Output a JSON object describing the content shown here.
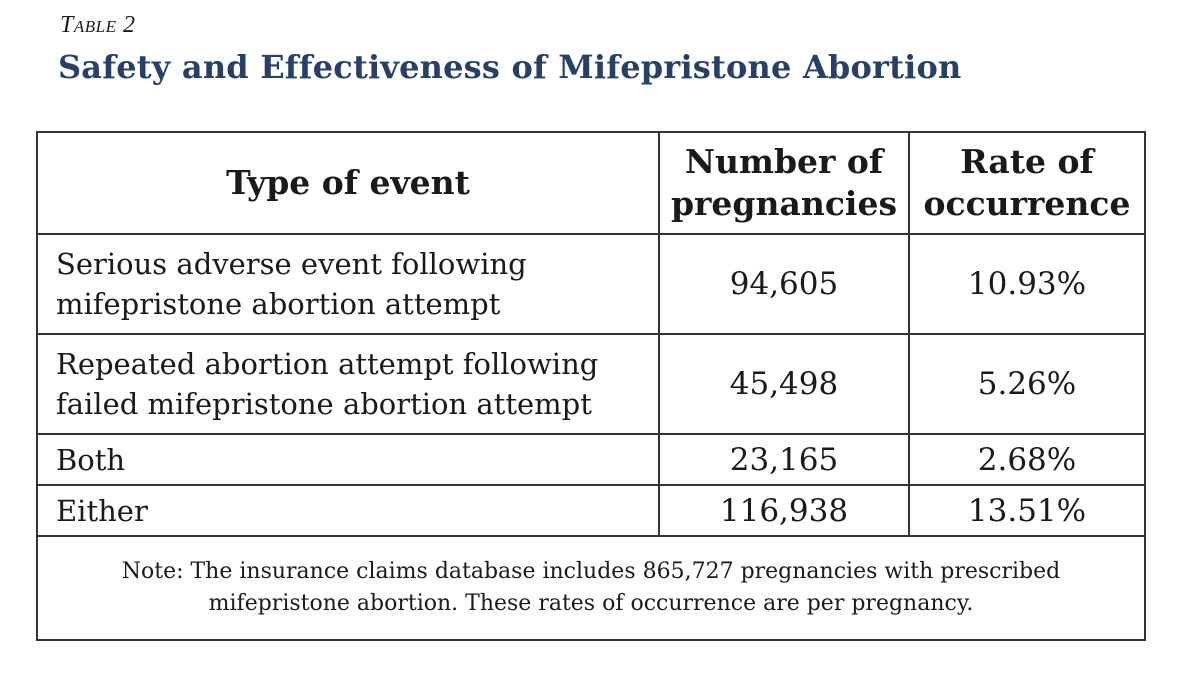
{
  "label": "Table 2",
  "title": "Safety and Effectiveness of Mifepristone Abortion",
  "table": {
    "headers": {
      "type": "Type of event",
      "number_line1": "Number of",
      "number_line2": "pregnancies",
      "rate_line1": "Rate of",
      "rate_line2": "occurrence"
    },
    "rows": [
      {
        "type_line1": "Serious adverse event following",
        "type_line2": "mifepristone abortion attempt",
        "number": "94,605",
        "rate": "10.93%"
      },
      {
        "type_line1": "Repeated abortion attempt following",
        "type_line2": "failed mifepristone abortion attempt",
        "number": "45,498",
        "rate": "5.26%"
      },
      {
        "type_line1": "Both",
        "type_line2": "",
        "number": "23,165",
        "rate": "2.68%"
      },
      {
        "type_line1": "Either",
        "type_line2": "",
        "number": "116,938",
        "rate": "13.51%"
      }
    ],
    "note_line1": "Note: The insurance claims database includes 865,727 pregnancies with prescribed",
    "note_line2": "mifepristone abortion. These rates of occurrence are per pregnancy."
  },
  "colors": {
    "title": "#27406a",
    "border": "#333333",
    "text": "#1a1a1a"
  }
}
